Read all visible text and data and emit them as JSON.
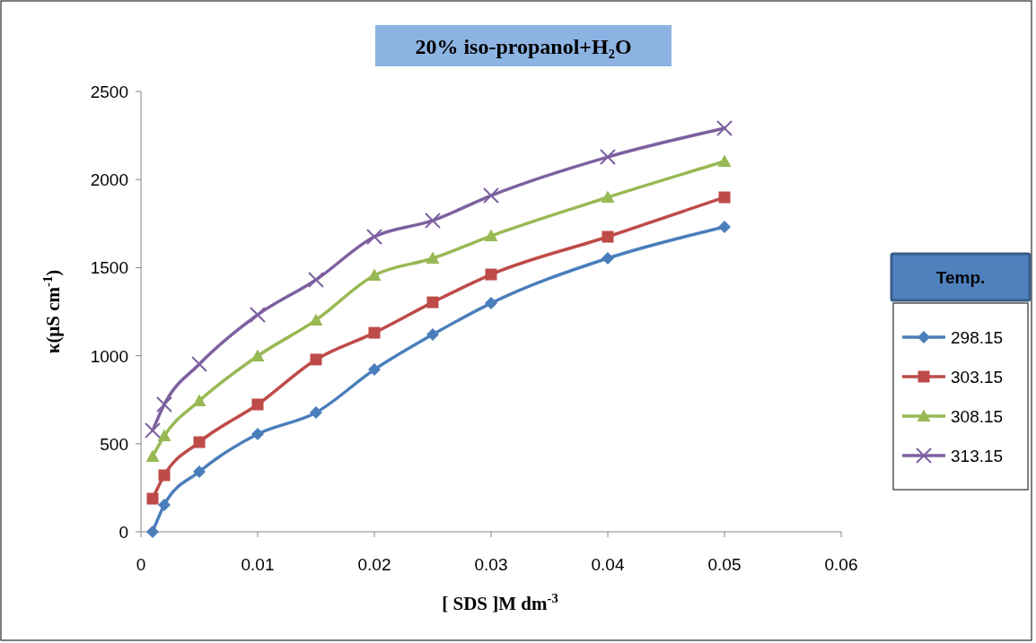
{
  "chart_data": {
    "type": "line",
    "title": "20% iso-propanol+H₂O",
    "xlabel": "[ SDS ]M dm$^{-3}$",
    "ylabel": "κ(μS cm$^{-1}$)",
    "legend_title": "Temp.",
    "legend": "right",
    "grid": false,
    "x": [
      0.001,
      0.002,
      0.005,
      0.01,
      0.015,
      0.02,
      0.025,
      0.03,
      0.04,
      0.05
    ],
    "xlim": [
      0,
      0.06
    ],
    "xticks": [
      0,
      0.01,
      0.02,
      0.03,
      0.04,
      0.05,
      0.06
    ],
    "ylim": [
      0,
      2500
    ],
    "yticks": [
      0,
      500,
      1000,
      1500,
      2000,
      2500
    ],
    "series": [
      {
        "name": "298.15",
        "color": "#4a7ebb",
        "marker": "diamond",
        "values": [
          0,
          153,
          341,
          555,
          677,
          921,
          1120,
          1298,
          1553,
          1731
        ]
      },
      {
        "name": "303.15",
        "color": "#be4b48",
        "marker": "square",
        "values": [
          188,
          321,
          509,
          723,
          978,
          1130,
          1303,
          1461,
          1675,
          1899
        ]
      },
      {
        "name": "308.15",
        "color": "#98b954",
        "marker": "triangle",
        "values": [
          428,
          545,
          743,
          998,
          1202,
          1456,
          1553,
          1680,
          1899,
          2103
        ]
      },
      {
        "name": "313.15",
        "color": "#7d60a0",
        "marker": "cross",
        "values": [
          575,
          723,
          952,
          1232,
          1431,
          1675,
          1767,
          1909,
          2128,
          2291
        ]
      }
    ]
  }
}
